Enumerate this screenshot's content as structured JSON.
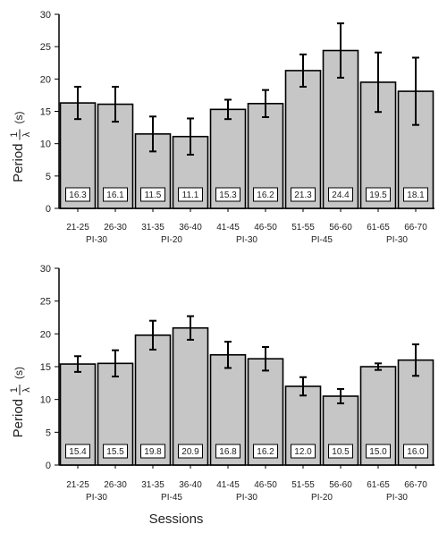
{
  "chart_data": [
    {
      "type": "bar",
      "categories": [
        "21-25",
        "26-30",
        "31-35",
        "36-40",
        "41-45",
        "46-50",
        "51-55",
        "56-60",
        "61-65",
        "66-70"
      ],
      "groups": [
        {
          "label": "PI-30",
          "from": 0,
          "to": 1
        },
        {
          "label": "PI-20",
          "from": 2,
          "to": 3
        },
        {
          "label": "PI-30",
          "from": 4,
          "to": 5
        },
        {
          "label": "PI-45",
          "from": 6,
          "to": 7
        },
        {
          "label": "PI-30",
          "from": 8,
          "to": 9
        }
      ],
      "values": [
        16.3,
        16.1,
        11.5,
        11.1,
        15.3,
        16.2,
        21.3,
        24.4,
        19.5,
        18.1
      ],
      "value_labels": [
        "16.3",
        "16.1",
        "11.5",
        "11.1",
        "15.3",
        "16.2",
        "21.3",
        "24.4",
        "19.5",
        "18.1"
      ],
      "errors": [
        2.5,
        2.7,
        2.7,
        2.8,
        1.5,
        2.1,
        2.5,
        4.2,
        4.6,
        5.2
      ],
      "ylim": [
        0,
        30
      ],
      "yticks": [
        "0",
        "5",
        "10",
        "15",
        "20",
        "25",
        "30"
      ],
      "ylabel_text": "Period",
      "ylabel_frac_num": "1",
      "ylabel_frac_den": "λ",
      "ylabel_unit": "(s)",
      "xlabel": ""
    },
    {
      "type": "bar",
      "categories": [
        "21-25",
        "26-30",
        "31-35",
        "36-40",
        "41-45",
        "46-50",
        "51-55",
        "56-60",
        "61-65",
        "66-70"
      ],
      "groups": [
        {
          "label": "PI-30",
          "from": 0,
          "to": 1
        },
        {
          "label": "PI-45",
          "from": 2,
          "to": 3
        },
        {
          "label": "PI-30",
          "from": 4,
          "to": 5
        },
        {
          "label": "PI-20",
          "from": 6,
          "to": 7
        },
        {
          "label": "PI-30",
          "from": 8,
          "to": 9
        }
      ],
      "values": [
        15.4,
        15.5,
        19.8,
        20.9,
        16.8,
        16.2,
        12.0,
        10.5,
        15.0,
        16.0
      ],
      "value_labels": [
        "15.4",
        "15.5",
        "19.8",
        "20.9",
        "16.8",
        "16.2",
        "12.0",
        "10.5",
        "15.0",
        "16.0"
      ],
      "errors": [
        1.2,
        2.0,
        2.2,
        1.8,
        2.0,
        1.8,
        1.4,
        1.1,
        0.5,
        2.4
      ],
      "ylim": [
        0,
        30
      ],
      "yticks": [
        "0",
        "5",
        "10",
        "15",
        "20",
        "25",
        "30"
      ],
      "ylabel_text": "Period",
      "ylabel_frac_num": "1",
      "ylabel_frac_den": "λ",
      "ylabel_unit": "(s)",
      "xlabel": "Sessions"
    }
  ]
}
